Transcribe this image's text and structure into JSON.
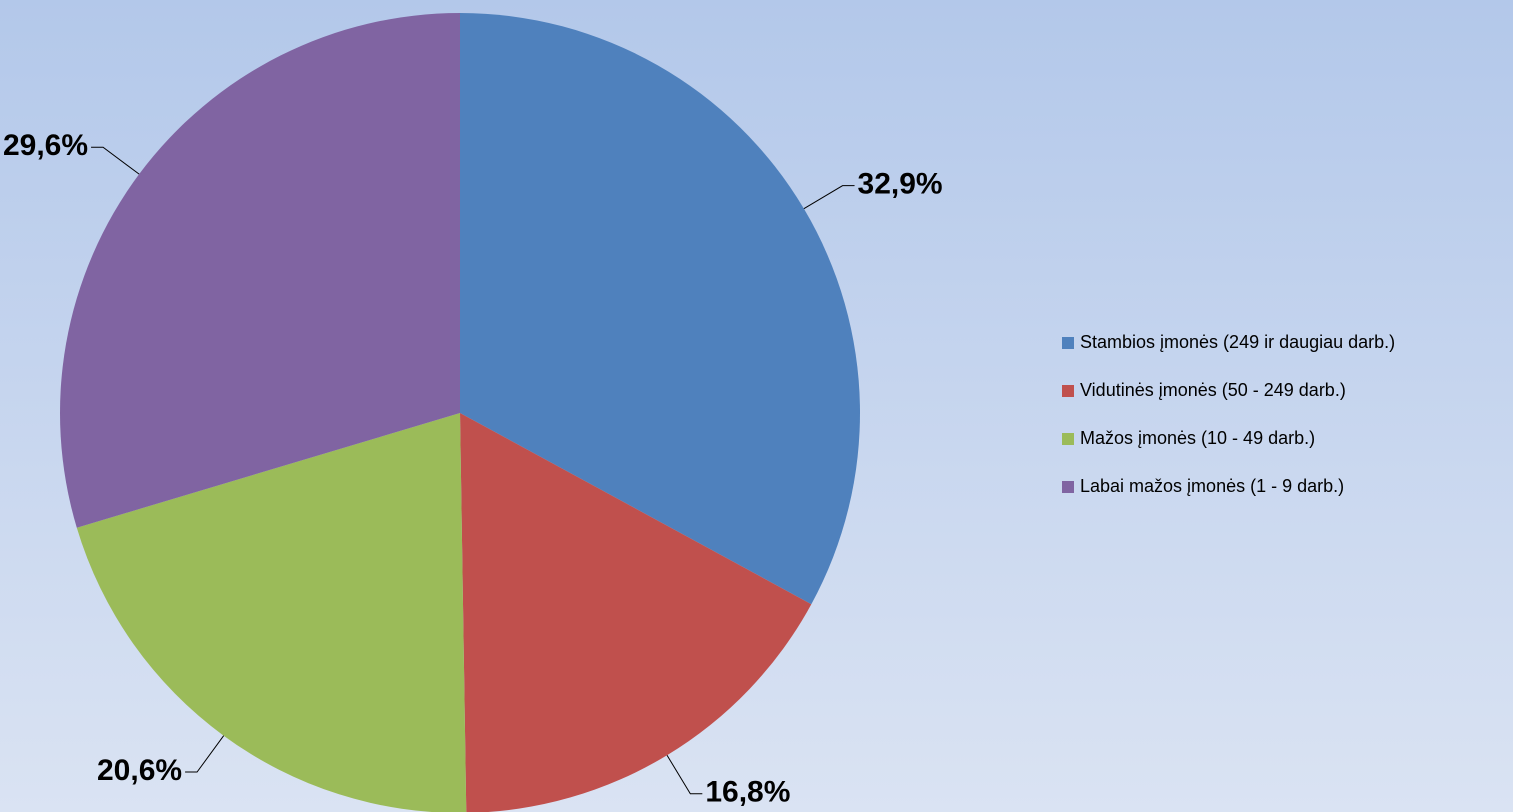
{
  "chart_data": {
    "type": "pie",
    "categories": [
      "Stambios įmonės (249 ir daugiau darb.)",
      "Vidutinės įmonės (50 - 249 darb.)",
      "Mažos įmonės (10 - 49 darb.)",
      "Labai mažos įmonės (1 - 9 darb.)"
    ],
    "values": [
      32.9,
      16.8,
      20.6,
      29.6
    ],
    "value_labels": [
      "32,9%",
      "16,8%",
      "20,6%",
      "29,6%"
    ],
    "colors": [
      "#4f81bd",
      "#c0504d",
      "#9bbb59",
      "#8064a2"
    ],
    "legend": "right"
  }
}
